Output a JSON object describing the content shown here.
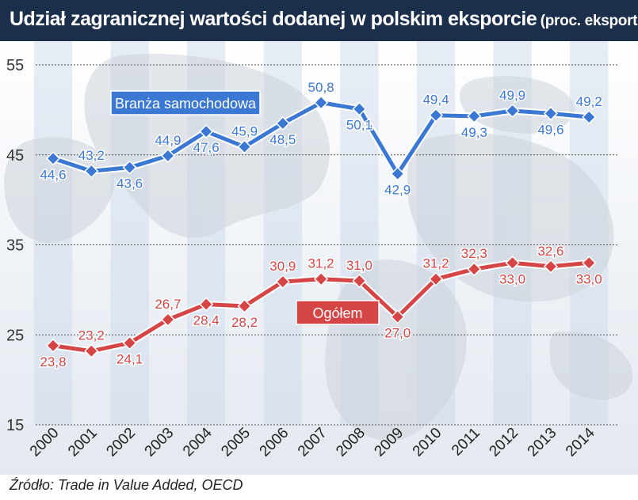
{
  "title": "Udział zagranicznej wartości dodanej w polskim eksporcie",
  "subtitle": "(proc. eksportu)",
  "source": "Źródło: Trade in Value Added, OECD",
  "chart_data": {
    "type": "line",
    "categories": [
      "2000",
      "2001",
      "2002",
      "2003",
      "2004",
      "2005",
      "2006",
      "2007",
      "2008",
      "2009",
      "2010",
      "2011",
      "2012",
      "2013",
      "2014"
    ],
    "ylim": [
      15,
      55
    ],
    "yticks": [
      15,
      25,
      35,
      45,
      55
    ],
    "grid": true,
    "series": [
      {
        "name": "Branża samochodowa",
        "color": "#3a78d4",
        "values": [
          44.6,
          43.2,
          43.6,
          44.9,
          47.6,
          45.9,
          48.5,
          50.8,
          50.1,
          42.9,
          49.4,
          49.3,
          49.9,
          49.6,
          49.2
        ],
        "labels": [
          "44,6",
          "43,2",
          "43,6",
          "44,9",
          "47,6",
          "45,9",
          "48,5",
          "50,8",
          "50,1",
          "42,9",
          "49,4",
          "49,3",
          "49,9",
          "49,6",
          "49,2"
        ],
        "label_pos": [
          "below",
          "above",
          "below",
          "above",
          "below",
          "above",
          "below",
          "above",
          "below",
          "below",
          "above",
          "below",
          "above",
          "below",
          "above"
        ]
      },
      {
        "name": "Ogółem",
        "color": "#d64545",
        "values": [
          23.8,
          23.2,
          24.1,
          26.7,
          28.4,
          28.2,
          30.9,
          31.2,
          31.0,
          27.0,
          31.2,
          32.3,
          33.0,
          32.6,
          33.0
        ],
        "labels": [
          "23,8",
          "23,2",
          "24,1",
          "26,7",
          "28,4",
          "28,2",
          "30,9",
          "31,2",
          "31,0",
          "27,0",
          "31,2",
          "32,3",
          "33,0",
          "32,6",
          "33,0"
        ],
        "label_pos": [
          "below",
          "above",
          "below",
          "above",
          "below",
          "below",
          "above",
          "above",
          "above",
          "below",
          "above",
          "above",
          "below",
          "above",
          "below"
        ]
      }
    ]
  }
}
